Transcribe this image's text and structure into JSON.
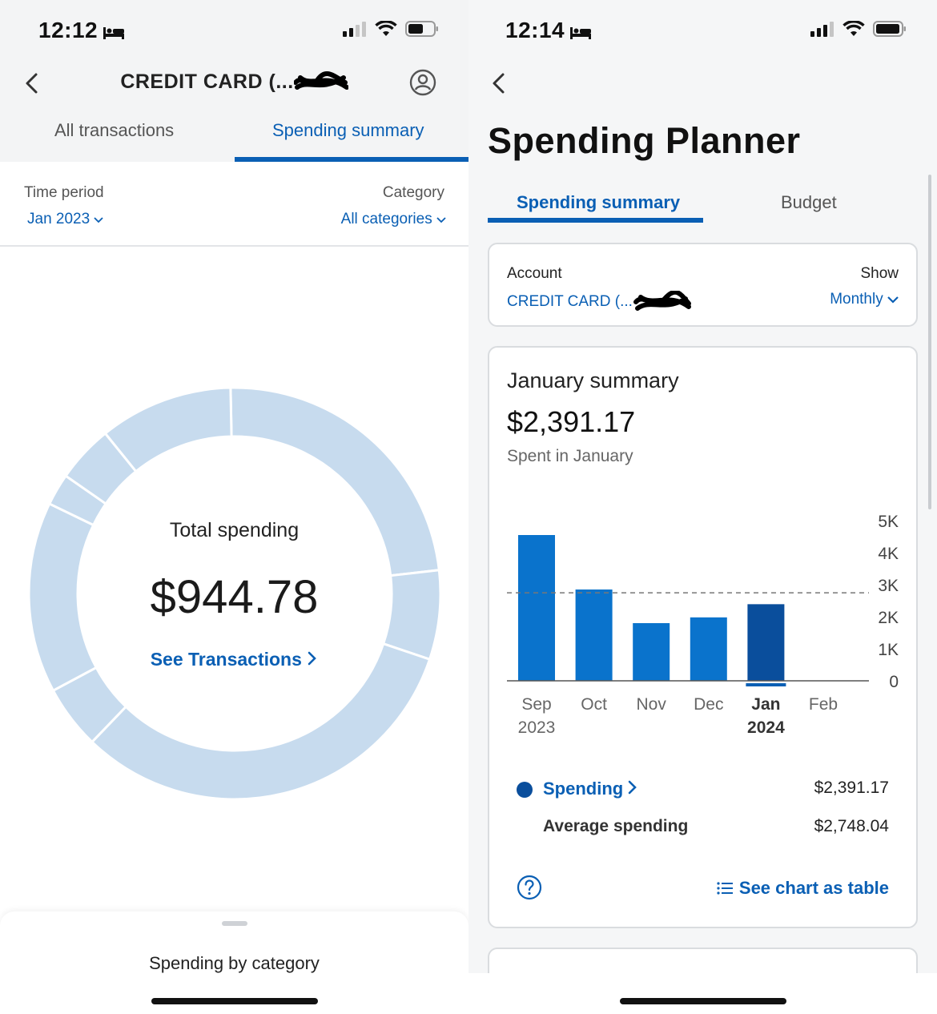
{
  "left": {
    "status": {
      "time": "12:12"
    },
    "header": {
      "title": "CREDIT CARD (..."
    },
    "tabs": [
      {
        "label": "All transactions"
      },
      {
        "label": "Spending summary"
      }
    ],
    "filters": {
      "time_period_label": "Time period",
      "time_period_value": "Jan 2023",
      "category_label": "Category",
      "category_value": "All categories"
    },
    "summary": {
      "total_label": "Total spending",
      "total_amount": "$944.78",
      "see_transactions": "See Transactions"
    },
    "sheet": {
      "title": "Spending by category"
    }
  },
  "right": {
    "status": {
      "time": "12:14"
    },
    "title": "Spending Planner",
    "tabs": [
      {
        "label": "Spending summary"
      },
      {
        "label": "Budget"
      }
    ],
    "account": {
      "label": "Account",
      "value": "CREDIT CARD (...",
      "show_label": "Show",
      "show_value": "Monthly"
    },
    "summary": {
      "title": "January summary",
      "amount": "$2,391.17",
      "subtitle": "Spent in January"
    },
    "legend": {
      "spending_label": "Spending",
      "spending_value": "$2,391.17",
      "average_label": "Average spending",
      "average_value": "$2,748.04"
    },
    "see_chart_table": "See chart as table"
  },
  "colors": {
    "accent": "#0a5fb4",
    "bar": "#0a73cc",
    "bar_selected": "#0a4e9c",
    "donut_segment": "#c7dbee"
  },
  "chart_data": {
    "type": "bar",
    "categories": [
      "Sep",
      "Oct",
      "Nov",
      "Dec",
      "Jan",
      "Feb"
    ],
    "category_sublabels": [
      "2023",
      "",
      "",
      "",
      "2024",
      ""
    ],
    "values": [
      4550,
      2850,
      1800,
      1980,
      2391.17,
      0
    ],
    "selected_index": 4,
    "average": 2748.04,
    "ylim": [
      0,
      5000
    ],
    "yticks": [
      0,
      1000,
      2000,
      3000,
      4000,
      5000
    ],
    "ytick_labels": [
      "0",
      "1K",
      "2K",
      "3K",
      "4K",
      "5K"
    ],
    "grid": false
  },
  "donut_data": {
    "type": "pie",
    "segment_fractions": [
      0.235,
      0.07,
      0.32,
      0.05,
      0.15,
      0.025,
      0.045,
      0.105
    ]
  }
}
